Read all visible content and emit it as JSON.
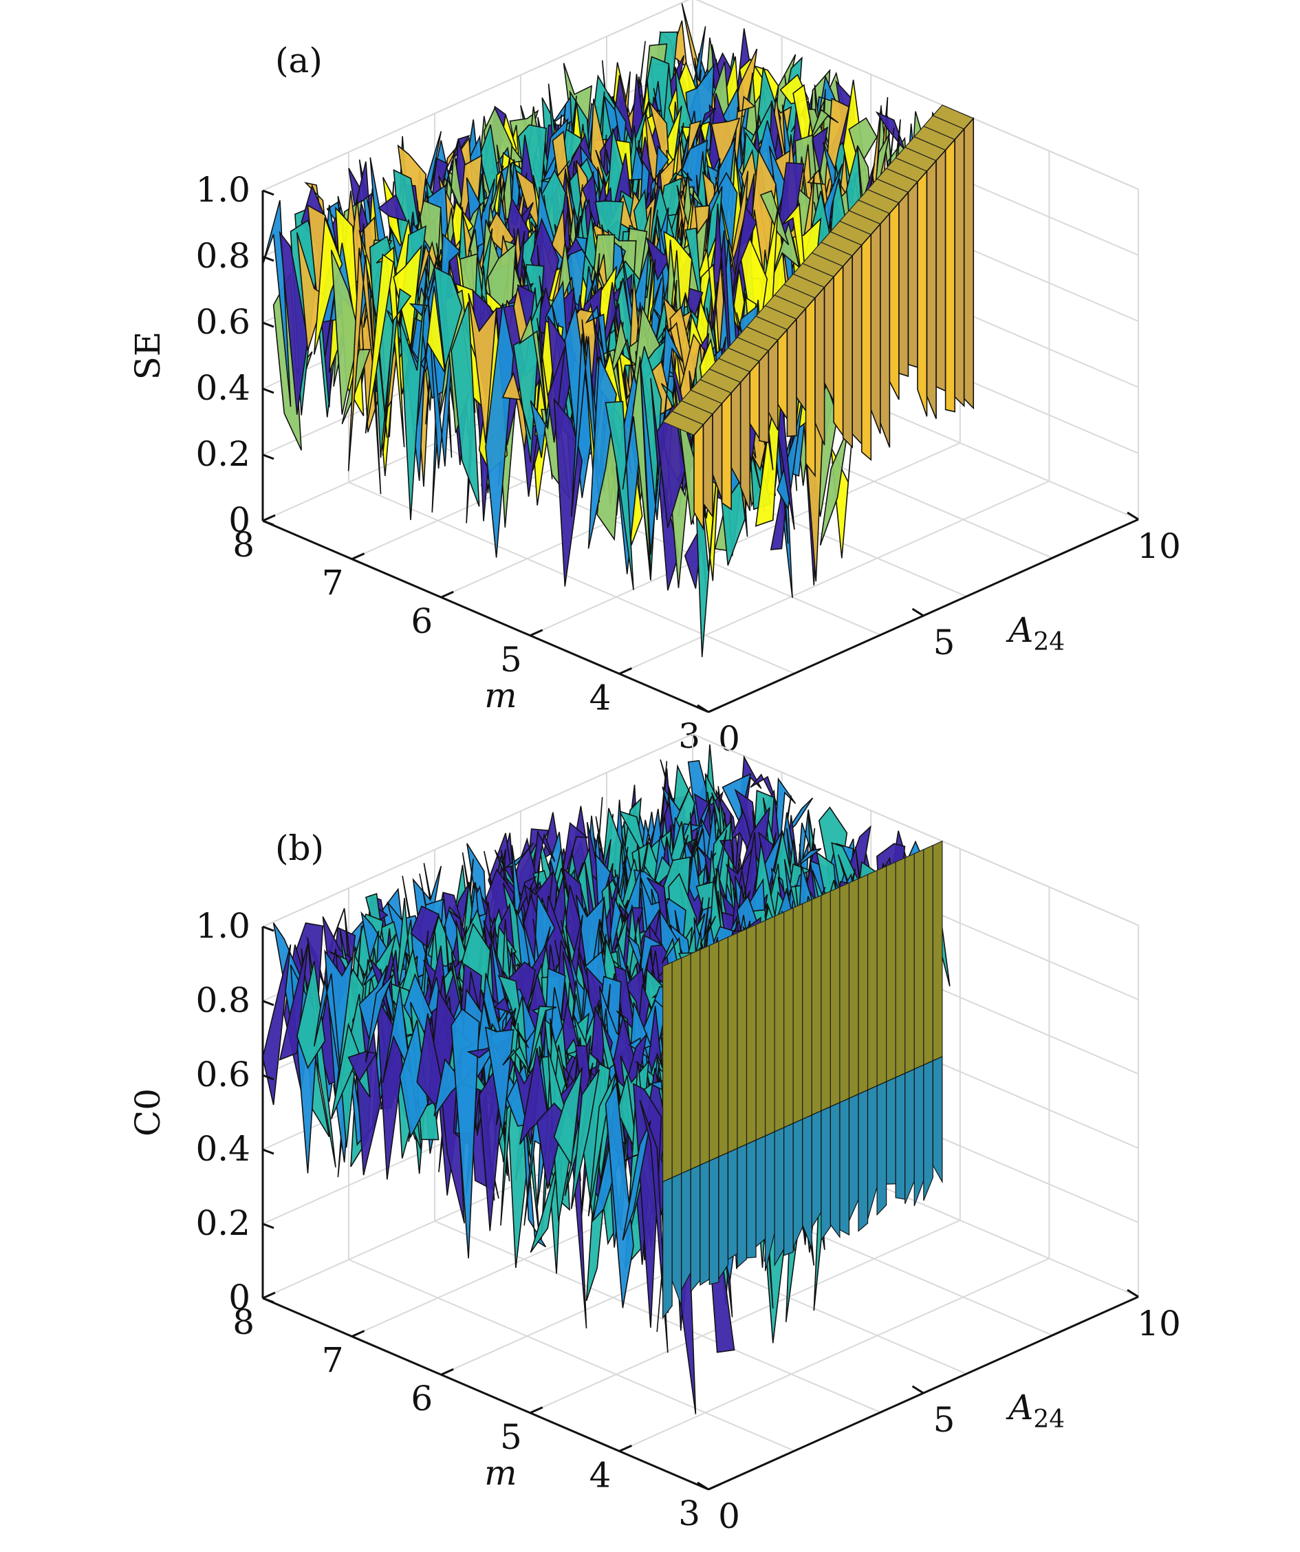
{
  "chart_data": [
    {
      "type": "surface",
      "panel_label": "(a)",
      "zlabel": "SE",
      "xlabel": "A24",
      "xlabel_main": "A",
      "xlabel_sub": "24",
      "ylabel": "m",
      "xlim": [
        0,
        10
      ],
      "ylim": [
        3,
        8
      ],
      "zlim": [
        0,
        1
      ],
      "x_ticks": [
        "0",
        "5",
        "10"
      ],
      "y_ticks": [
        "3",
        "4",
        "5",
        "6",
        "7",
        "8"
      ],
      "z_ticks": [
        "0",
        "0.2",
        "0.4",
        "0.6",
        "0.8",
        "1.0"
      ],
      "grid": true,
      "colormap": [
        "#3e26a8",
        "#1f8fd8",
        "#25b7ab",
        "#8fc86a",
        "#e8b83c",
        "#f9fb0e"
      ],
      "description_values": {
        "noisy_region_z_range": [
          0.1,
          1.0
        ],
        "plateau_region": {
          "x_range": [
            3.5,
            10
          ],
          "y_value": 5.2,
          "z_range": [
            0.4,
            1.0
          ]
        }
      }
    },
    {
      "type": "surface",
      "panel_label": "(b)",
      "zlabel": "C0",
      "xlabel": "A24",
      "xlabel_main": "A",
      "xlabel_sub": "24",
      "ylabel": "m",
      "xlim": [
        0,
        10
      ],
      "ylim": [
        3,
        8
      ],
      "zlim": [
        0,
        1
      ],
      "x_ticks": [
        "0",
        "5",
        "10"
      ],
      "y_ticks": [
        "3",
        "4",
        "5",
        "6",
        "7",
        "8"
      ],
      "z_ticks": [
        "0",
        "0.2",
        "0.4",
        "0.6",
        "0.8",
        "1.0"
      ],
      "grid": true,
      "colormap": [
        "#3e26a8",
        "#1f8fd8",
        "#25b7ab",
        "#8fc86a",
        "#e8b83c",
        "#f9fb0e"
      ],
      "description_values": {
        "noisy_region_z_range": [
          0.1,
          1.0
        ],
        "plateau_region": {
          "x_range": [
            3.5,
            10
          ],
          "y_value": 5.2,
          "z_range": [
            0.0,
            1.0
          ]
        }
      }
    }
  ]
}
